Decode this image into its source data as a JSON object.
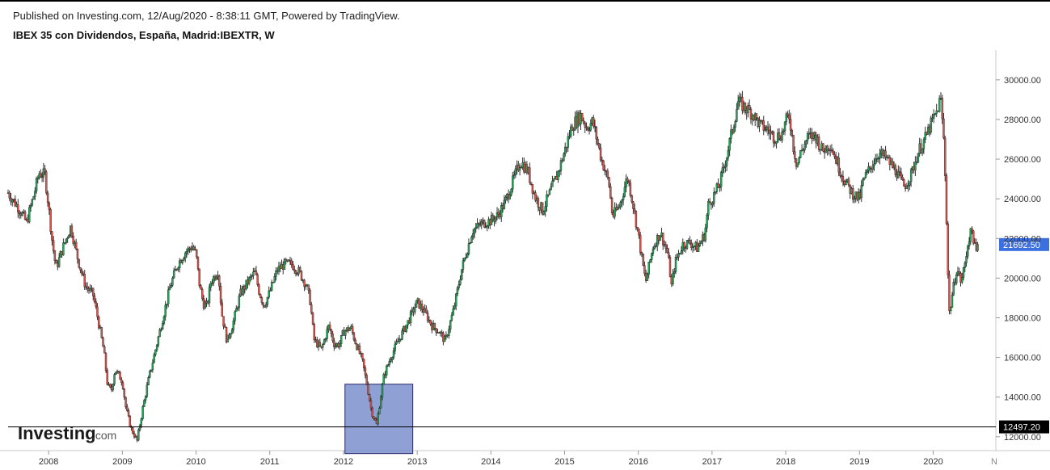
{
  "header": {
    "published_line": "Published on Investing.com, 12/Aug/2020 - 8:38:11 GMT, Powered by TradingView.",
    "title": "IBEX 35 con Dividendos, España, Madrid:IBEXTR, W"
  },
  "watermark": {
    "brand": "Investing",
    "suffix": ".com"
  },
  "colors": {
    "up": "#26a65b",
    "down": "#d9544c",
    "wick": "#333333",
    "highlight": "#7b8fce",
    "last_price_bg": "#3c6fe0"
  },
  "chart_data": {
    "type": "candlestick",
    "interval": "W",
    "x_range": [
      2007.45,
      2020.85
    ],
    "y_range": [
      11300,
      31500
    ],
    "y_ticks": [
      12000,
      14000,
      16000,
      18000,
      20000,
      22000,
      24000,
      26000,
      28000,
      30000
    ],
    "y_tick_labels": [
      "12000.00",
      "14000.00",
      "16000.00",
      "18000.00",
      "20000.00",
      "22000.00",
      "24000.00",
      "26000.00",
      "28000.00",
      "30000.00"
    ],
    "x_ticks": [
      2008,
      2009,
      2010,
      2011,
      2012,
      2013,
      2014,
      2015,
      2016,
      2017,
      2018,
      2019,
      2020
    ],
    "x_tick_labels": [
      "2008",
      "2009",
      "2010",
      "2011",
      "2012",
      "2013",
      "2014",
      "2015",
      "2016",
      "2017",
      "2018",
      "2019",
      "2020"
    ],
    "x_tick_cut": "N",
    "price_path": [
      [
        2007.45,
        24300
      ],
      [
        2007.6,
        23500
      ],
      [
        2007.7,
        22800
      ],
      [
        2007.8,
        24200
      ],
      [
        2007.87,
        25300
      ],
      [
        2007.95,
        25200
      ],
      [
        2008.0,
        23600
      ],
      [
        2008.05,
        21800
      ],
      [
        2008.1,
        20500
      ],
      [
        2008.2,
        21600
      ],
      [
        2008.3,
        22600
      ],
      [
        2008.4,
        20900
      ],
      [
        2008.5,
        19600
      ],
      [
        2008.6,
        19200
      ],
      [
        2008.65,
        18300
      ],
      [
        2008.75,
        16300
      ],
      [
        2008.8,
        14600
      ],
      [
        2008.85,
        14300
      ],
      [
        2008.9,
        15400
      ],
      [
        2009.0,
        14800
      ],
      [
        2009.05,
        13400
      ],
      [
        2009.12,
        12400
      ],
      [
        2009.2,
        11800
      ],
      [
        2009.28,
        13500
      ],
      [
        2009.35,
        14800
      ],
      [
        2009.45,
        16400
      ],
      [
        2009.55,
        18000
      ],
      [
        2009.65,
        19600
      ],
      [
        2009.75,
        20700
      ],
      [
        2009.85,
        21300
      ],
      [
        2009.95,
        21600
      ],
      [
        2010.0,
        21200
      ],
      [
        2010.05,
        19600
      ],
      [
        2010.1,
        18700
      ],
      [
        2010.15,
        18600
      ],
      [
        2010.2,
        19800
      ],
      [
        2010.3,
        20400
      ],
      [
        2010.35,
        18200
      ],
      [
        2010.42,
        16800
      ],
      [
        2010.5,
        17700
      ],
      [
        2010.6,
        19200
      ],
      [
        2010.7,
        19800
      ],
      [
        2010.8,
        20300
      ],
      [
        2010.85,
        19400
      ],
      [
        2010.92,
        18600
      ],
      [
        2011.0,
        19300
      ],
      [
        2011.1,
        20400
      ],
      [
        2011.2,
        20700
      ],
      [
        2011.3,
        20700
      ],
      [
        2011.4,
        20300
      ],
      [
        2011.5,
        19600
      ],
      [
        2011.55,
        18800
      ],
      [
        2011.6,
        16900
      ],
      [
        2011.7,
        16400
      ],
      [
        2011.8,
        17600
      ],
      [
        2011.88,
        16600
      ],
      [
        2011.95,
        16700
      ],
      [
        2012.0,
        17300
      ],
      [
        2012.1,
        17500
      ],
      [
        2012.15,
        16900
      ],
      [
        2012.25,
        15900
      ],
      [
        2012.32,
        14600
      ],
      [
        2012.38,
        13300
      ],
      [
        2012.45,
        12600
      ],
      [
        2012.5,
        13900
      ],
      [
        2012.55,
        15100
      ],
      [
        2012.65,
        16100
      ],
      [
        2012.75,
        16900
      ],
      [
        2012.85,
        17600
      ],
      [
        2012.95,
        18400
      ],
      [
        2013.0,
        18800
      ],
      [
        2013.1,
        18300
      ],
      [
        2013.2,
        17600
      ],
      [
        2013.3,
        17300
      ],
      [
        2013.38,
        16800
      ],
      [
        2013.5,
        18500
      ],
      [
        2013.6,
        20400
      ],
      [
        2013.75,
        22400
      ],
      [
        2013.9,
        22800
      ],
      [
        2014.0,
        22900
      ],
      [
        2014.1,
        23200
      ],
      [
        2014.2,
        23900
      ],
      [
        2014.3,
        24900
      ],
      [
        2014.4,
        25900
      ],
      [
        2014.5,
        25400
      ],
      [
        2014.6,
        24100
      ],
      [
        2014.7,
        23400
      ],
      [
        2014.8,
        24300
      ],
      [
        2014.9,
        25200
      ],
      [
        2015.0,
        26400
      ],
      [
        2015.1,
        27700
      ],
      [
        2015.22,
        28200
      ],
      [
        2015.3,
        27600
      ],
      [
        2015.38,
        27900
      ],
      [
        2015.45,
        26800
      ],
      [
        2015.5,
        26000
      ],
      [
        2015.6,
        24800
      ],
      [
        2015.65,
        23100
      ],
      [
        2015.75,
        23700
      ],
      [
        2015.85,
        25100
      ],
      [
        2015.9,
        24300
      ],
      [
        2016.0,
        22200
      ],
      [
        2016.05,
        20900
      ],
      [
        2016.1,
        19800
      ],
      [
        2016.2,
        21600
      ],
      [
        2016.3,
        22300
      ],
      [
        2016.4,
        21200
      ],
      [
        2016.45,
        19600
      ],
      [
        2016.5,
        20800
      ],
      [
        2016.6,
        21700
      ],
      [
        2016.7,
        21800
      ],
      [
        2016.8,
        21500
      ],
      [
        2016.9,
        22200
      ],
      [
        2016.95,
        23700
      ],
      [
        2017.0,
        24000
      ],
      [
        2017.1,
        24700
      ],
      [
        2017.2,
        26200
      ],
      [
        2017.3,
        27900
      ],
      [
        2017.35,
        28900
      ],
      [
        2017.45,
        28600
      ],
      [
        2017.55,
        28300
      ],
      [
        2017.65,
        27700
      ],
      [
        2017.75,
        27500
      ],
      [
        2017.85,
        27100
      ],
      [
        2017.95,
        27300
      ],
      [
        2018.0,
        27900
      ],
      [
        2018.05,
        28200
      ],
      [
        2018.1,
        26700
      ],
      [
        2018.15,
        25700
      ],
      [
        2018.2,
        26300
      ],
      [
        2018.3,
        27100
      ],
      [
        2018.4,
        27200
      ],
      [
        2018.5,
        26400
      ],
      [
        2018.6,
        26800
      ],
      [
        2018.7,
        25800
      ],
      [
        2018.8,
        24900
      ],
      [
        2018.9,
        24300
      ],
      [
        2019.0,
        24000
      ],
      [
        2019.05,
        24900
      ],
      [
        2019.15,
        25600
      ],
      [
        2019.25,
        26300
      ],
      [
        2019.35,
        26100
      ],
      [
        2019.45,
        25600
      ],
      [
        2019.5,
        25400
      ],
      [
        2019.6,
        24600
      ],
      [
        2019.7,
        25200
      ],
      [
        2019.8,
        26400
      ],
      [
        2019.9,
        27100
      ],
      [
        2019.95,
        27600
      ],
      [
        2020.05,
        28400
      ],
      [
        2020.1,
        29100
      ],
      [
        2020.14,
        27200
      ],
      [
        2020.17,
        24500
      ],
      [
        2020.2,
        20200
      ],
      [
        2020.22,
        18200
      ],
      [
        2020.26,
        19200
      ],
      [
        2020.32,
        20500
      ],
      [
        2020.38,
        19800
      ],
      [
        2020.43,
        20700
      ],
      [
        2020.48,
        22000
      ],
      [
        2020.53,
        22400
      ],
      [
        2020.58,
        21200
      ],
      [
        2020.61,
        21690
      ]
    ],
    "horizontal_line": {
      "value": 12497.2,
      "label": "12497.20"
    },
    "last_price": {
      "value": 21692.5,
      "label": "21692.50"
    },
    "highlight_box": {
      "x_start": 2012.02,
      "x_end": 2012.94,
      "y_low": 11150,
      "y_high": 14650
    }
  }
}
